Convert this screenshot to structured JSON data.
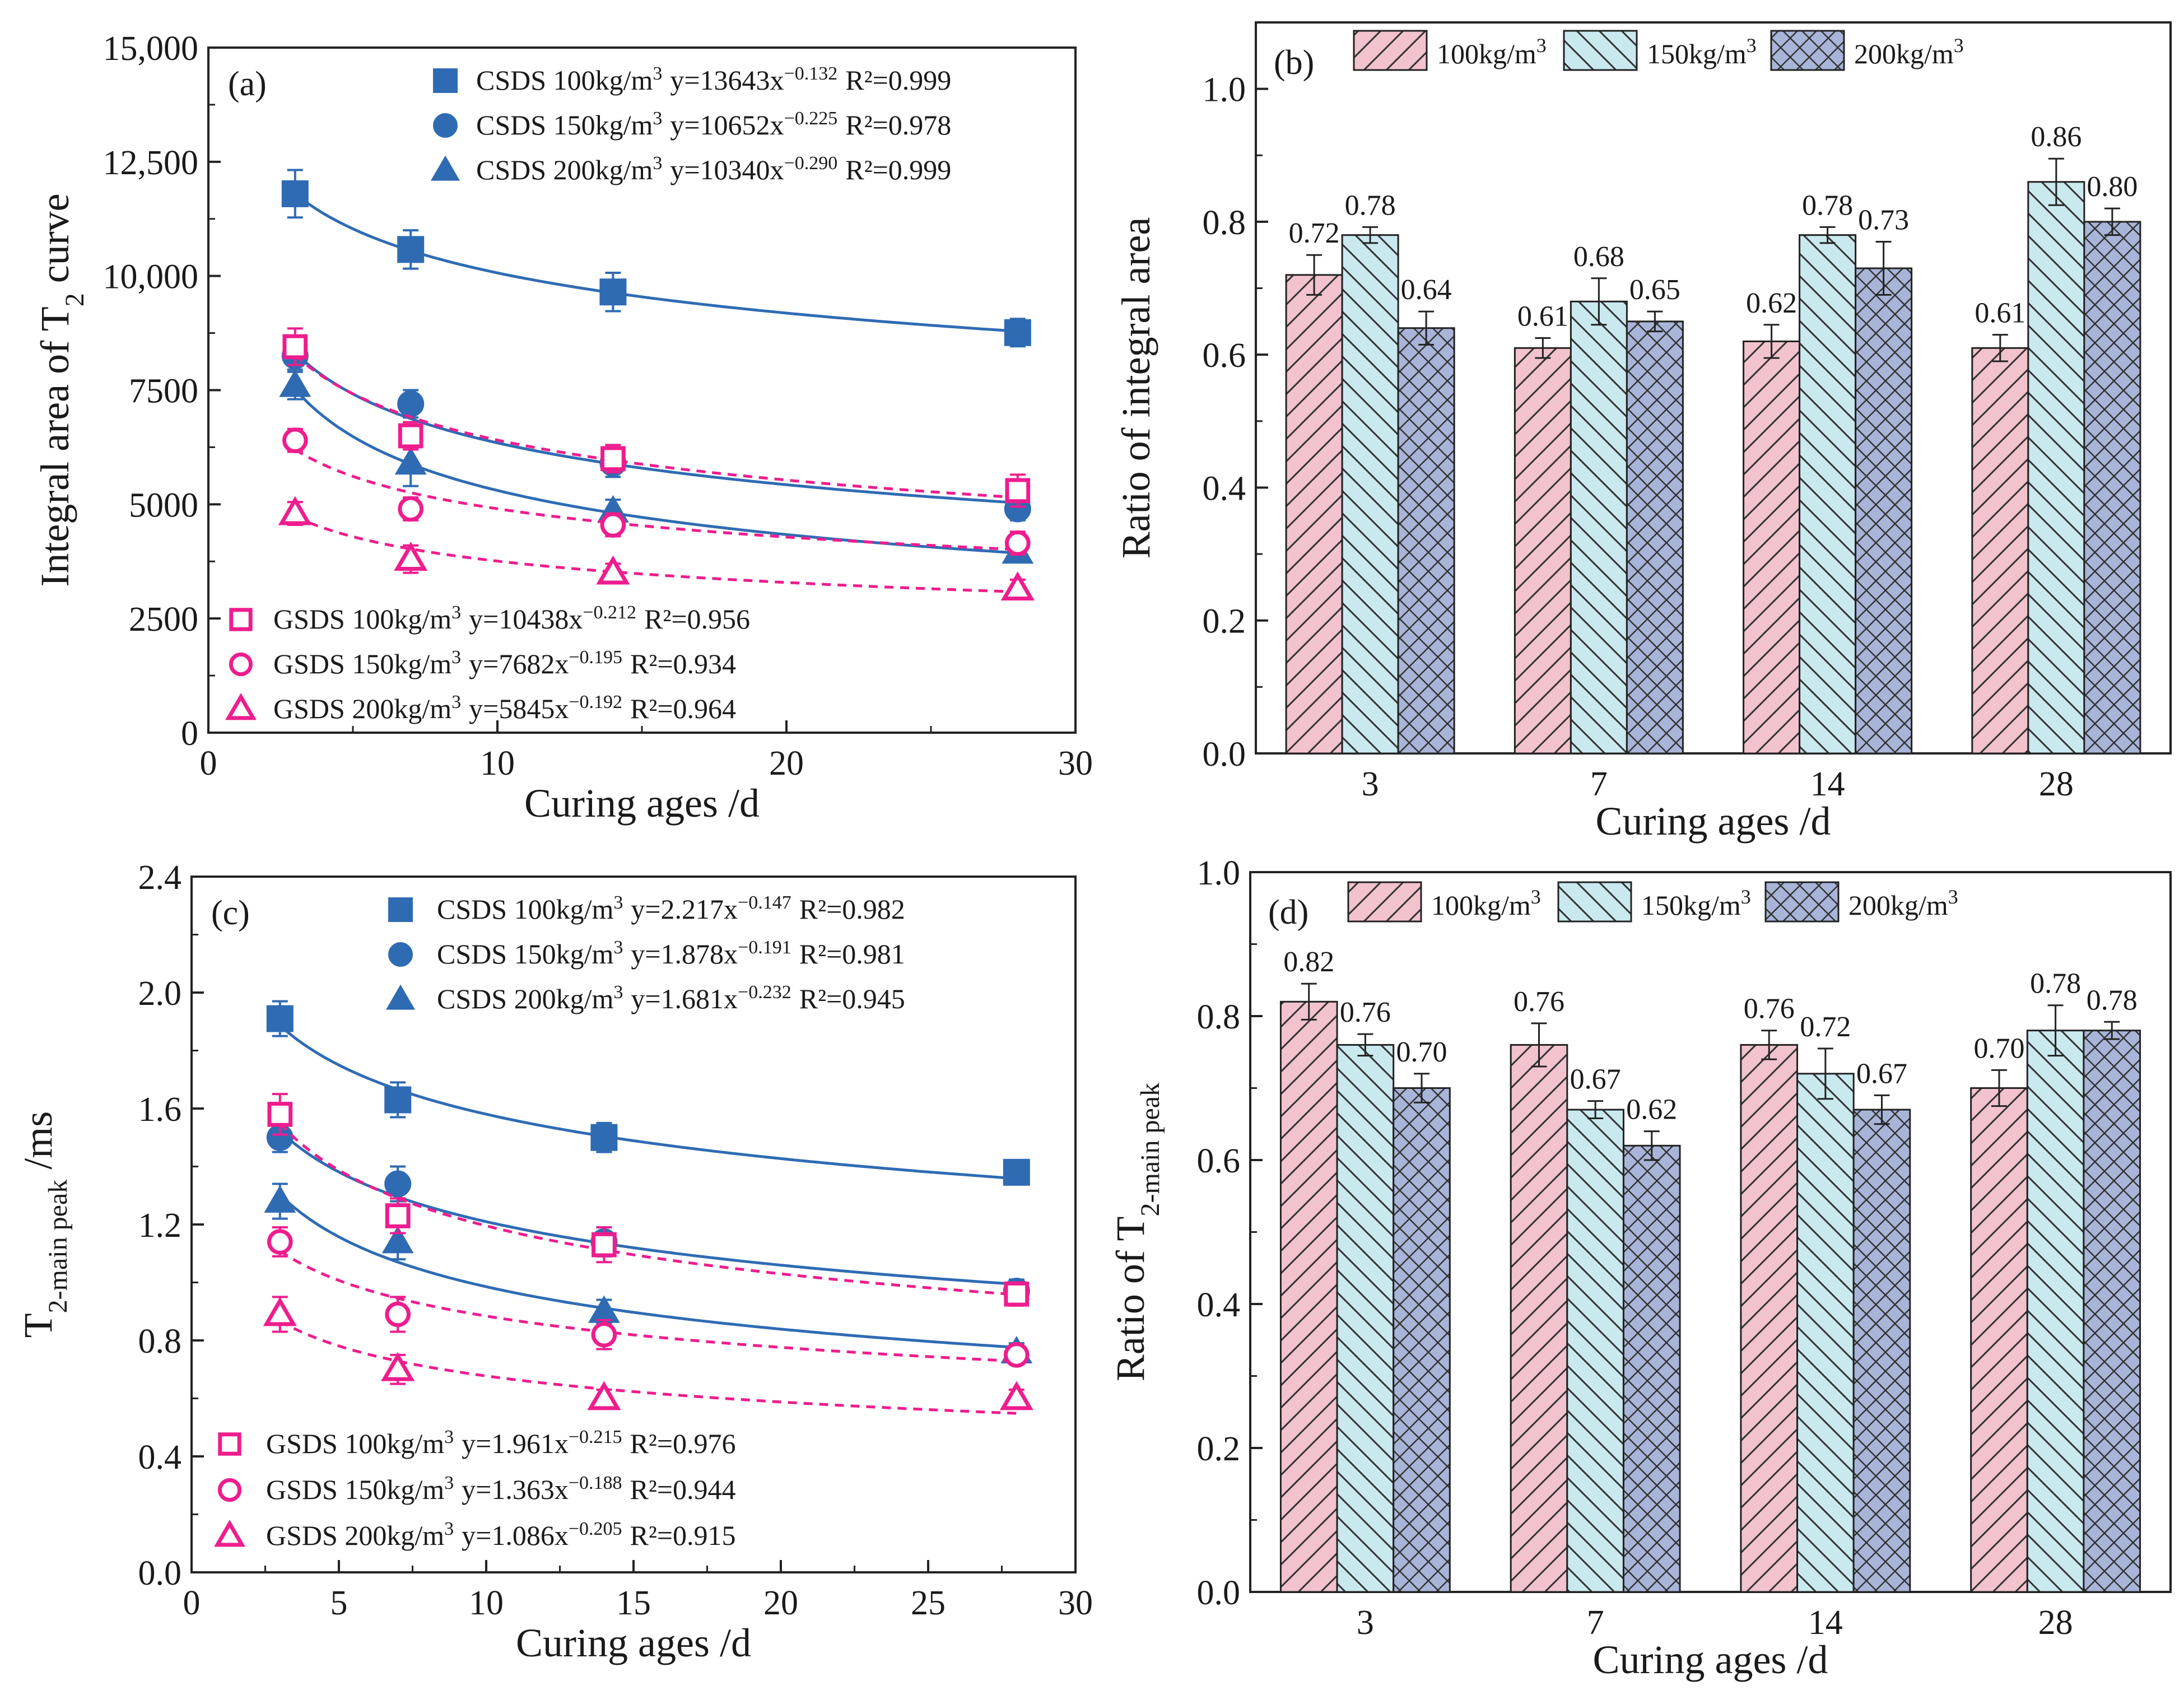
{
  "chart_data": [
    {
      "id": "a",
      "type": "scatter",
      "panel_label": "(a)",
      "xlabel": "Curing ages /d",
      "ylabel_html": "Integral area of T<tspan baseline-shift='sub' font-size='48'>2</tspan> curve",
      "ylabel_main": "Integral area of T",
      "ylabel_sub": "2",
      "ylabel_tail": " curve",
      "xlim": [
        0,
        30
      ],
      "ylim": [
        0,
        15000
      ],
      "xticks": [
        0,
        10,
        20,
        30
      ],
      "xtick_labels": [
        "0",
        "10",
        "20",
        "30"
      ],
      "yticks": [
        0,
        2500,
        5000,
        7500,
        10000,
        12500,
        15000
      ],
      "ytick_labels": [
        "0",
        "2500",
        "5000",
        "7500",
        "10,000",
        "12,500",
        "15,000"
      ],
      "x": [
        3,
        7,
        14,
        28
      ],
      "series": [
        {
          "name": "CSDS 100kg/m3",
          "legend_text": "CSDS 100kg/m",
          "legend_eq": "y=13643x",
          "legend_exp": "−0.132",
          "legend_r2": "R²=0.999",
          "marker": "square",
          "filled": true,
          "color": "#2f6bb3",
          "values": [
            11800,
            10580,
            9650,
            8760
          ],
          "errors": [
            520,
            420,
            420,
            300
          ],
          "fit": {
            "a": 13643,
            "b": -0.132
          },
          "dashed": false
        },
        {
          "name": "CSDS 150kg/m3",
          "legend_text": "CSDS 150kg/m",
          "legend_eq": "y=10652x",
          "legend_exp": "−0.225",
          "legend_r2": "R²=0.978",
          "marker": "circle",
          "filled": true,
          "color": "#2f6bb3",
          "values": [
            8250,
            7200,
            5900,
            4900
          ],
          "errors": [
            300,
            300,
            300,
            250
          ],
          "fit": {
            "a": 10652,
            "b": -0.225
          },
          "dashed": false
        },
        {
          "name": "CSDS 200kg/m3",
          "legend_text": "CSDS 200kg/m",
          "legend_eq": "y=10340x",
          "legend_exp": "−0.290",
          "legend_r2": "R²=0.999",
          "marker": "triangle",
          "filled": true,
          "color": "#2f6bb3",
          "values": [
            7600,
            5900,
            4850,
            3950
          ],
          "errors": [
            300,
            500,
            250,
            200
          ],
          "fit": {
            "a": 10340,
            "b": -0.29
          },
          "dashed": false
        },
        {
          "name": "GSDS 100kg/m3",
          "legend_text": "GSDS 100kg/m",
          "legend_eq": "y=10438x",
          "legend_exp": "−0.212",
          "legend_r2": "R²=0.956",
          "marker": "square",
          "filled": false,
          "color": "#ee1d8e",
          "values": [
            8450,
            6500,
            6000,
            5300
          ],
          "errors": [
            400,
            300,
            300,
            350
          ],
          "fit": {
            "a": 10438,
            "b": -0.212
          },
          "dashed": true
        },
        {
          "name": "GSDS 150kg/m3",
          "legend_text": "GSDS 150kg/m",
          "legend_eq": "y=7682x",
          "legend_exp": "−0.195",
          "legend_r2": "R²=0.934",
          "marker": "circle",
          "filled": false,
          "color": "#ee1d8e",
          "values": [
            6400,
            4900,
            4550,
            4150
          ],
          "errors": [
            250,
            250,
            250,
            250
          ],
          "fit": {
            "a": 7682,
            "b": -0.195
          },
          "dashed": true
        },
        {
          "name": "GSDS 200kg/m3",
          "legend_text": "GSDS 200kg/m",
          "legend_eq": "y=5845x",
          "legend_exp": "−0.192",
          "legend_r2": "R²=0.964",
          "marker": "triangle",
          "filled": false,
          "color": "#ee1d8e",
          "values": [
            4800,
            3800,
            3500,
            3150
          ],
          "errors": [
            250,
            300,
            200,
            200
          ],
          "fit": {
            "a": 5845,
            "b": -0.192
          },
          "dashed": true
        }
      ]
    },
    {
      "id": "b",
      "type": "bar",
      "panel_label": "(b)",
      "xlabel": "Curing ages /d",
      "ylabel_main": "Ratio of integral area",
      "ylabel_sub": "",
      "ylabel_tail": "",
      "ylim": [
        0,
        1.1
      ],
      "yticks": [
        0,
        0.2,
        0.4,
        0.6,
        0.8,
        1.0
      ],
      "ytick_labels": [
        "0.0",
        "0.2",
        "0.4",
        "0.6",
        "0.8",
        "1.0"
      ],
      "categories": [
        "3",
        "7",
        "14",
        "28"
      ],
      "series": [
        {
          "name": "100kg/m3",
          "legend_text": "100kg/m",
          "values": [
            0.72,
            0.61,
            0.62,
            0.61
          ],
          "labels": [
            "0.72",
            "0.61",
            "0.62",
            "0.61"
          ],
          "errors": [
            0.03,
            0.015,
            0.025,
            0.02
          ],
          "fill": "#f2c3cd",
          "pattern": "diag-fwd"
        },
        {
          "name": "150kg/m3",
          "legend_text": "150kg/m",
          "values": [
            0.78,
            0.68,
            0.78,
            0.86
          ],
          "labels": [
            "0.78",
            "0.68",
            "0.78",
            "0.86"
          ],
          "errors": [
            0.012,
            0.035,
            0.012,
            0.035
          ],
          "fill": "#c9e9ef",
          "pattern": "diag-back"
        },
        {
          "name": "200kg/m3",
          "legend_text": "200kg/m",
          "values": [
            0.64,
            0.65,
            0.73,
            0.8
          ],
          "labels": [
            "0.64",
            "0.65",
            "0.73",
            "0.80"
          ],
          "errors": [
            0.025,
            0.015,
            0.04,
            0.02
          ],
          "fill": "#a8b5d8",
          "pattern": "cross"
        }
      ]
    },
    {
      "id": "c",
      "type": "scatter",
      "panel_label": "(c)",
      "xlabel": "Curing ages /d",
      "ylabel_main": "T",
      "ylabel_sub": "2-main peak",
      "ylabel_tail": " /ms",
      "xlim": [
        0,
        30
      ],
      "ylim": [
        0,
        2.4
      ],
      "xticks": [
        0,
        5,
        10,
        15,
        20,
        25,
        30
      ],
      "xtick_labels": [
        "0",
        "5",
        "10",
        "15",
        "20",
        "25",
        "30"
      ],
      "yticks": [
        0,
        0.4,
        0.8,
        1.2,
        1.6,
        2.0,
        2.4
      ],
      "ytick_labels": [
        "0.0",
        "0.4",
        "0.8",
        "1.2",
        "1.6",
        "2.0",
        "2.4"
      ],
      "x": [
        3,
        7,
        14,
        28
      ],
      "series": [
        {
          "name": "CSDS 100kg/m3",
          "legend_text": "CSDS 100kg/m",
          "legend_eq": "y=2.217x",
          "legend_exp": "−0.147",
          "legend_r2": "R²=0.982",
          "marker": "square",
          "filled": true,
          "color": "#2f6bb3",
          "values": [
            1.91,
            1.63,
            1.5,
            1.38
          ],
          "errors": [
            0.06,
            0.06,
            0.05,
            0.04
          ],
          "fit": {
            "a": 2.217,
            "b": -0.147
          },
          "dashed": false
        },
        {
          "name": "CSDS 150kg/m3",
          "legend_text": "CSDS 150kg/m",
          "legend_eq": "y=1.878x",
          "legend_exp": "−0.191",
          "legend_r2": "R²=0.981",
          "marker": "circle",
          "filled": true,
          "color": "#2f6bb3",
          "values": [
            1.5,
            1.34,
            1.14,
            0.97
          ],
          "errors": [
            0.05,
            0.06,
            0.05,
            0.04
          ],
          "fit": {
            "a": 1.878,
            "b": -0.191
          },
          "dashed": false
        },
        {
          "name": "CSDS 200kg/m3",
          "legend_text": "CSDS 200kg/m",
          "legend_eq": "y=1.681x",
          "legend_exp": "−0.232",
          "legend_r2": "R²=0.945",
          "marker": "triangle",
          "filled": true,
          "color": "#2f6bb3",
          "values": [
            1.28,
            1.14,
            0.9,
            0.76
          ],
          "errors": [
            0.06,
            0.06,
            0.04,
            0.03
          ],
          "fit": {
            "a": 1.681,
            "b": -0.232
          },
          "dashed": false
        },
        {
          "name": "GSDS 100kg/m3",
          "legend_text": "GSDS 100kg/m",
          "legend_eq": "y=1.961x",
          "legend_exp": "−0.215",
          "legend_r2": "R²=0.976",
          "marker": "square",
          "filled": false,
          "color": "#ee1d8e",
          "values": [
            1.58,
            1.23,
            1.13,
            0.96
          ],
          "errors": [
            0.07,
            0.06,
            0.06,
            0.04
          ],
          "fit": {
            "a": 1.961,
            "b": -0.215
          },
          "dashed": true
        },
        {
          "name": "GSDS 150kg/m3",
          "legend_text": "GSDS 150kg/m",
          "legend_eq": "y=1.363x",
          "legend_exp": "−0.188",
          "legend_r2": "R²=0.944",
          "marker": "circle",
          "filled": false,
          "color": "#ee1d8e",
          "values": [
            1.14,
            0.89,
            0.82,
            0.75
          ],
          "errors": [
            0.05,
            0.06,
            0.05,
            0.03
          ],
          "fit": {
            "a": 1.363,
            "b": -0.188
          },
          "dashed": true
        },
        {
          "name": "GSDS 200kg/m3",
          "legend_text": "GSDS 200kg/m",
          "legend_eq": "y=1.086x",
          "legend_exp": "−0.205",
          "legend_r2": "R²=0.915",
          "marker": "triangle",
          "filled": false,
          "color": "#ee1d8e",
          "values": [
            0.89,
            0.7,
            0.6,
            0.6
          ],
          "errors": [
            0.06,
            0.05,
            0.03,
            0.03
          ],
          "fit": {
            "a": 1.086,
            "b": -0.205
          },
          "dashed": true
        }
      ]
    },
    {
      "id": "d",
      "type": "bar",
      "panel_label": "(d)",
      "xlabel": "Curing ages /d",
      "ylabel_main": "Ratio of T",
      "ylabel_sub": "2-main peak",
      "ylabel_tail": "",
      "ylim": [
        0,
        1.0
      ],
      "yticks": [
        0,
        0.2,
        0.4,
        0.6,
        0.8,
        1.0
      ],
      "ytick_labels": [
        "0.0",
        "0.2",
        "0.4",
        "0.6",
        "0.8",
        "1.0"
      ],
      "categories": [
        "3",
        "7",
        "14",
        "28"
      ],
      "series": [
        {
          "name": "100kg/m3",
          "legend_text": "100kg/m",
          "values": [
            0.82,
            0.76,
            0.76,
            0.7
          ],
          "labels": [
            "0.82",
            "0.76",
            "0.76",
            "0.70"
          ],
          "errors": [
            0.025,
            0.03,
            0.02,
            0.025
          ],
          "fill": "#f2c3cd",
          "pattern": "diag-fwd"
        },
        {
          "name": "150kg/m3",
          "legend_text": "150kg/m",
          "values": [
            0.76,
            0.67,
            0.72,
            0.78
          ],
          "labels": [
            "0.76",
            "0.67",
            "0.72",
            "0.78"
          ],
          "errors": [
            0.015,
            0.012,
            0.035,
            0.035
          ],
          "fill": "#c9e9ef",
          "pattern": "diag-back"
        },
        {
          "name": "200kg/m3",
          "legend_text": "200kg/m",
          "values": [
            0.7,
            0.62,
            0.67,
            0.78
          ],
          "labels": [
            "0.70",
            "0.62",
            "0.67",
            "0.78"
          ],
          "errors": [
            0.02,
            0.02,
            0.02,
            0.012
          ],
          "fill": "#a8b5d8",
          "pattern": "cross"
        }
      ]
    }
  ],
  "superscript_3": "3"
}
